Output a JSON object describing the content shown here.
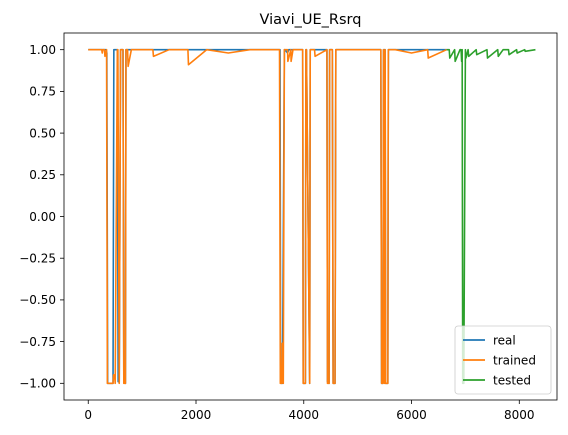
{
  "chart_data": {
    "type": "line",
    "title": "Viavi_UE_Rsrq",
    "xlabel": "",
    "ylabel": "",
    "xlim": [
      -450,
      8700
    ],
    "ylim": [
      -1.1,
      1.1
    ],
    "xticks": [
      0,
      2000,
      4000,
      6000,
      8000
    ],
    "xtick_labels": [
      "0",
      "2000",
      "4000",
      "6000",
      "8000"
    ],
    "yticks": [
      1.0,
      0.75,
      0.5,
      0.25,
      0.0,
      -0.25,
      -0.5,
      -0.75,
      -1.0
    ],
    "ytick_labels": [
      "1.00",
      "0.75",
      "0.50",
      "0.25",
      "0.00",
      "−0.25",
      "−0.50",
      "−0.75",
      "−1.00"
    ],
    "grid": false,
    "legend_position": "lower-right",
    "series": [
      {
        "name": "real",
        "color": "#1f77b4",
        "x": [
          0,
          330,
          345,
          360,
          460,
          475,
          540,
          555,
          575,
          600,
          645,
          660,
          690,
          700,
          725,
          3560,
          3570,
          3585,
          3605,
          3640,
          3650,
          3700,
          3720,
          3980,
          3990,
          4030,
          4040,
          4050,
          4110,
          4120,
          4430,
          4440,
          4470,
          4480,
          4530,
          4545,
          4580,
          4595,
          5430,
          5445,
          5470,
          5480,
          5510,
          5520,
          5560,
          5570,
          6650
        ],
        "y": [
          1.0,
          1.0,
          0.98,
          -1.0,
          -1.0,
          1.0,
          1.0,
          -0.99,
          -0.99,
          1.0,
          1.0,
          -0.99,
          -1.0,
          1.0,
          1.0,
          1.0,
          -0.99,
          -1.0,
          -1.0,
          1.0,
          1.0,
          0.98,
          1.0,
          1.0,
          -1.0,
          -1.0,
          1.0,
          1.0,
          -1.0,
          1.0,
          1.0,
          -0.99,
          -1.0,
          1.0,
          1.0,
          -1.0,
          -1.0,
          1.0,
          1.0,
          -1.0,
          -1.0,
          1.0,
          1.0,
          -1.0,
          -1.0,
          1.0,
          1.0
        ]
      },
      {
        "name": "trained",
        "color": "#ff7f0e",
        "x": [
          0,
          250,
          260,
          270,
          300,
          310,
          340,
          355,
          460,
          470,
          490,
          500,
          540,
          550,
          575,
          600,
          645,
          660,
          690,
          700,
          730,
          740,
          800,
          1200,
          1210,
          1500,
          1850,
          1860,
          2200,
          2600,
          3000,
          3300,
          3550,
          3565,
          3590,
          3600,
          3620,
          3640,
          3700,
          3705,
          3760,
          3765,
          3800,
          3980,
          3990,
          4030,
          4040,
          4050,
          4110,
          4120,
          4200,
          4210,
          4430,
          4440,
          4470,
          4480,
          4530,
          4545,
          4580,
          4595,
          4700,
          5000,
          5430,
          5445,
          5470,
          5480,
          5500,
          5510,
          5520,
          5560,
          5570,
          5700,
          6000,
          6300,
          6310,
          6650
        ],
        "y": [
          1.0,
          1.0,
          0.98,
          1.0,
          1.0,
          0.96,
          1.0,
          -1.0,
          -1.0,
          -0.95,
          -0.95,
          -1.0,
          1.0,
          1.0,
          -1.0,
          1.0,
          1.0,
          -1.0,
          -1.0,
          1.0,
          1.0,
          0.9,
          1.0,
          1.0,
          0.96,
          1.0,
          1.0,
          0.91,
          1.0,
          0.98,
          1.0,
          1.0,
          1.0,
          -1.0,
          -1.0,
          -0.76,
          -1.0,
          1.0,
          1.0,
          0.93,
          1.0,
          0.93,
          1.0,
          1.0,
          -1.0,
          -1.0,
          1.0,
          1.0,
          -1.0,
          1.0,
          1.0,
          0.96,
          1.0,
          -1.0,
          -1.0,
          1.0,
          1.0,
          -1.0,
          -1.0,
          1.0,
          1.0,
          1.0,
          1.0,
          -1.0,
          -1.0,
          1.0,
          -1.0,
          1.0,
          -1.0,
          -1.0,
          1.0,
          1.0,
          0.98,
          1.0,
          0.95,
          1.0
        ]
      },
      {
        "name": "tested",
        "color": "#2ca02c",
        "x": [
          6650,
          6700,
          6710,
          6800,
          6810,
          6900,
          6920,
          6930,
          6940,
          6950,
          6970,
          7000,
          7010,
          7050,
          7060,
          7200,
          7210,
          7400,
          7410,
          7600,
          7610,
          7700,
          7800,
          7810,
          7950,
          7960,
          8100,
          8110,
          8300
        ],
        "y": [
          1.0,
          1.0,
          0.95,
          1.0,
          0.93,
          1.0,
          1.0,
          0.93,
          1.0,
          -1.0,
          -1.0,
          1.0,
          0.95,
          1.0,
          0.96,
          1.0,
          0.97,
          1.0,
          0.95,
          1.0,
          0.96,
          1.0,
          1.0,
          0.97,
          1.0,
          0.98,
          1.0,
          0.99,
          1.0
        ]
      }
    ]
  }
}
